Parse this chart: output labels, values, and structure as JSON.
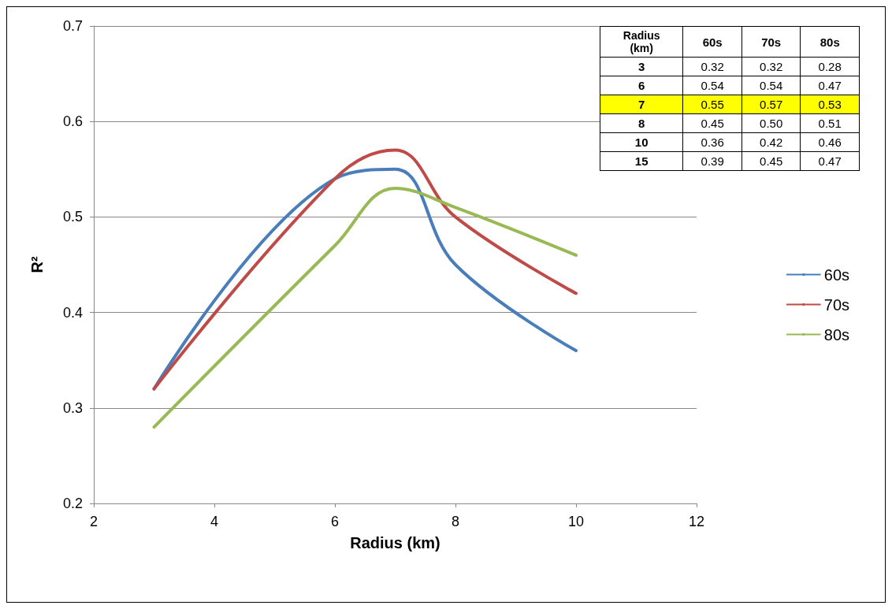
{
  "chart_data": [
    {
      "type": "line",
      "xlabel": "Radius (km)",
      "ylabel": "R²",
      "xlim": [
        2,
        12
      ],
      "xticks": [
        2,
        4,
        6,
        8,
        10,
        12
      ],
      "ylim": [
        0.2,
        0.7
      ],
      "yticks": [
        0.2,
        0.3,
        0.4,
        0.5,
        0.6,
        0.7
      ],
      "grid": "y",
      "legend": "right",
      "marker": "none",
      "line_style": "solid",
      "series": [
        {
          "name": "60s",
          "color": "#4a7ebb",
          "x": [
            3,
            6,
            7,
            8,
            10
          ],
          "values": [
            0.32,
            0.54,
            0.55,
            0.45,
            0.36
          ]
        },
        {
          "name": "70s",
          "color": "#be4b48",
          "x": [
            3,
            6,
            7,
            8,
            10
          ],
          "values": [
            0.32,
            0.54,
            0.57,
            0.5,
            0.42
          ]
        },
        {
          "name": "80s",
          "color": "#98b954",
          "x": [
            3,
            6,
            7,
            8,
            10
          ],
          "values": [
            0.28,
            0.47,
            0.53,
            0.51,
            0.46
          ]
        }
      ]
    },
    {
      "type": "other",
      "xlabel": "Radius\n(km)",
      "categories": [
        "3",
        "6",
        "7",
        "8",
        "10",
        "15"
      ],
      "series": [
        {
          "name": "60s",
          "colors": [
            "#ffffff",
            "#ffffff",
            "#ffff00",
            "#ffffff",
            "#ffffff",
            "#ffffff"
          ],
          "values": [
            0.32,
            0.54,
            0.55,
            0.45,
            0.36,
            0.39
          ],
          "value_labels": [
            "0.32",
            "0.54",
            "0.55",
            "0.45",
            "0.36",
            "0.39"
          ]
        },
        {
          "name": "70s",
          "colors": [
            "#ffffff",
            "#ffffff",
            "#ffff00",
            "#ffffff",
            "#ffffff",
            "#ffffff"
          ],
          "values": [
            0.32,
            0.54,
            0.57,
            0.5,
            0.42,
            0.45
          ],
          "value_labels": [
            "0.32",
            "0.54",
            "0.57",
            "0.50",
            "0.42",
            "0.45"
          ]
        },
        {
          "name": "80s",
          "colors": [
            "#ffffff",
            "#ffffff",
            "#ffff00",
            "#ffffff",
            "#ffffff",
            "#ffffff"
          ],
          "values": [
            0.28,
            0.47,
            0.53,
            0.51,
            0.46,
            0.47
          ],
          "value_labels": [
            "0.28",
            "0.47",
            "0.53",
            "0.51",
            "0.46",
            "0.47"
          ]
        }
      ]
    }
  ]
}
